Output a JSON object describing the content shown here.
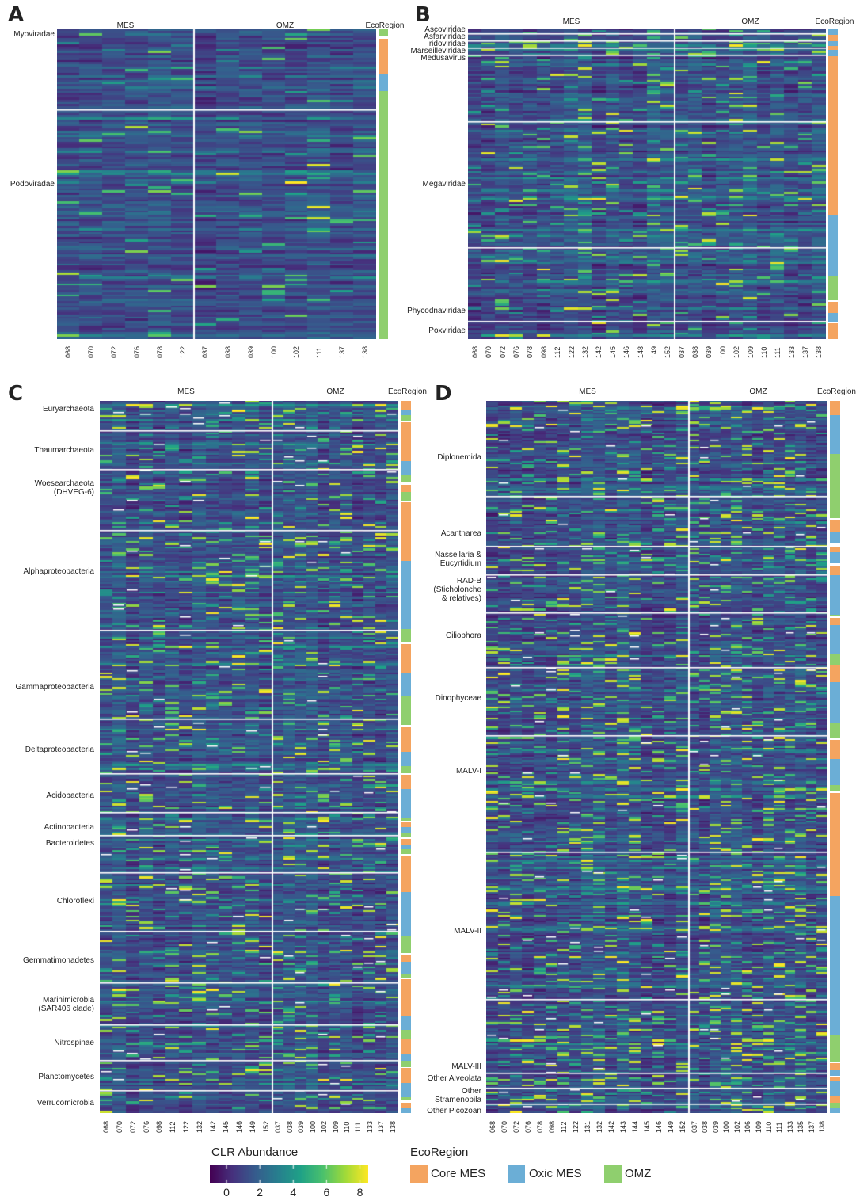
{
  "colors": {
    "core_mes": "#f4a460",
    "oxic_mes": "#6baed6",
    "omz": "#8fcf6e",
    "viridis": [
      "#440154",
      "#46327e",
      "#365c8d",
      "#277f8e",
      "#1fa187",
      "#4ac16d",
      "#a0da39",
      "#fde725"
    ]
  },
  "panels": [
    {
      "letter": "A",
      "mes_label": "MES",
      "omz_label": "OMZ",
      "eco_label": "EcoRegion",
      "samples_mes": [
        "068",
        "070",
        "072",
        "076",
        "078",
        "122"
      ],
      "samples_omz": [
        "037",
        "038",
        "039",
        "100",
        "102",
        "111",
        "137",
        "138"
      ],
      "groups": [
        {
          "name": "Myoviradae",
          "frac": 0.016
        },
        {
          "name": "Podoviradae",
          "frac": 0.5
        }
      ],
      "eco_segments": [
        {
          "region": "omz",
          "from": 0.0,
          "to": 0.02
        },
        {
          "region": "core_mes",
          "from": 0.03,
          "to": 0.145
        },
        {
          "region": "oxic_mes",
          "from": 0.145,
          "to": 0.2
        },
        {
          "region": "omz",
          "from": 0.2,
          "to": 1.0
        }
      ]
    },
    {
      "letter": "B",
      "mes_label": "MES",
      "omz_label": "OMZ",
      "eco_label": "EcoRegion",
      "samples_mes": [
        "068",
        "070",
        "072",
        "076",
        "078",
        "098",
        "112",
        "122",
        "132",
        "142",
        "145",
        "146",
        "148",
        "149",
        "152"
      ],
      "samples_omz": [
        "037",
        "038",
        "039",
        "100",
        "102",
        "109",
        "110",
        "111",
        "133",
        "137",
        "138"
      ],
      "groups": [
        {
          "name": "Ascoviridae",
          "frac": 0.005
        },
        {
          "name": "Asfarviridae",
          "frac": 0.028
        },
        {
          "name": "Iridoviridae",
          "frac": 0.05
        },
        {
          "name": "Marseilleviridae",
          "frac": 0.073
        },
        {
          "name": "Medusavirus",
          "frac": 0.095
        },
        {
          "name": "Megaviridae",
          "frac": 0.5
        },
        {
          "name": "Phycodnaviridae",
          "frac": 0.91
        },
        {
          "name": "Poxviridae",
          "frac": 0.974
        }
      ],
      "eco_segments": [
        {
          "region": "oxic_mes",
          "from": 0.0,
          "to": 0.02
        },
        {
          "region": "core_mes",
          "from": 0.02,
          "to": 0.04
        },
        {
          "region": "oxic_mes",
          "from": 0.04,
          "to": 0.055
        },
        {
          "region": "core_mes",
          "from": 0.055,
          "to": 0.07
        },
        {
          "region": "oxic_mes",
          "from": 0.07,
          "to": 0.09
        },
        {
          "region": "core_mes",
          "from": 0.09,
          "to": 0.6
        },
        {
          "region": "oxic_mes",
          "from": 0.6,
          "to": 0.795
        },
        {
          "region": "omz",
          "from": 0.795,
          "to": 0.875
        },
        {
          "region": "core_mes",
          "from": 0.88,
          "to": 0.915
        },
        {
          "region": "oxic_mes",
          "from": 0.915,
          "to": 0.945
        },
        {
          "region": "core_mes",
          "from": 0.95,
          "to": 1.0
        }
      ]
    },
    {
      "letter": "C",
      "mes_label": "MES",
      "omz_label": "OMZ",
      "eco_label": "EcoRegion",
      "samples_mes": [
        "068",
        "070",
        "072",
        "076",
        "098",
        "112",
        "122",
        "132",
        "142",
        "145",
        "146",
        "149",
        "152"
      ],
      "samples_omz": [
        "037",
        "038",
        "039",
        "100",
        "102",
        "109",
        "110",
        "111",
        "133",
        "137",
        "138"
      ],
      "groups": [
        {
          "name": "Euryarchaeota",
          "frac": 0.012
        },
        {
          "name": "Thaumarchaeota",
          "frac": 0.07
        },
        {
          "name": "Woesearchaeota\n(DHVEG-6)",
          "frac": 0.122
        },
        {
          "name": "Alphaproteobacteria",
          "frac": 0.24
        },
        {
          "name": "Gammaproteobacteria",
          "frac": 0.402
        },
        {
          "name": "Deltaproteobacteria",
          "frac": 0.49
        },
        {
          "name": "Acidobacteria",
          "frac": 0.555
        },
        {
          "name": "Actinobacteria",
          "frac": 0.599
        },
        {
          "name": "Bacteroidetes",
          "frac": 0.621
        },
        {
          "name": "Chloroflexi",
          "frac": 0.703
        },
        {
          "name": "Gemmatimonadetes",
          "frac": 0.786
        },
        {
          "name": "Marinimicrobia\n(SAR406 clade)",
          "frac": 0.848
        },
        {
          "name": "Nitrospinae",
          "frac": 0.902
        },
        {
          "name": "Planctomycetes",
          "frac": 0.949
        },
        {
          "name": "Verrucomicrobia",
          "frac": 0.986
        }
      ],
      "eco_segments": [
        {
          "region": "core_mes",
          "from": 0.0,
          "to": 0.012
        },
        {
          "region": "oxic_mes",
          "from": 0.012,
          "to": 0.02
        },
        {
          "region": "omz",
          "from": 0.02,
          "to": 0.028
        },
        {
          "region": "core_mes",
          "from": 0.03,
          "to": 0.085
        },
        {
          "region": "oxic_mes",
          "from": 0.085,
          "to": 0.105
        },
        {
          "region": "omz",
          "from": 0.105,
          "to": 0.115
        },
        {
          "region": "core_mes",
          "from": 0.118,
          "to": 0.128
        },
        {
          "region": "omz",
          "from": 0.128,
          "to": 0.14
        },
        {
          "region": "core_mes",
          "from": 0.142,
          "to": 0.225
        },
        {
          "region": "oxic_mes",
          "from": 0.225,
          "to": 0.32
        },
        {
          "region": "omz",
          "from": 0.32,
          "to": 0.338
        },
        {
          "region": "core_mes",
          "from": 0.342,
          "to": 0.383
        },
        {
          "region": "oxic_mes",
          "from": 0.383,
          "to": 0.415
        },
        {
          "region": "omz",
          "from": 0.415,
          "to": 0.455
        },
        {
          "region": "core_mes",
          "from": 0.458,
          "to": 0.493
        },
        {
          "region": "oxic_mes",
          "from": 0.493,
          "to": 0.513
        },
        {
          "region": "omz",
          "from": 0.513,
          "to": 0.523
        },
        {
          "region": "core_mes",
          "from": 0.525,
          "to": 0.545
        },
        {
          "region": "oxic_mes",
          "from": 0.545,
          "to": 0.585
        },
        {
          "region": "omz",
          "from": 0.585,
          "to": 0.59
        },
        {
          "region": "core_mes",
          "from": 0.592,
          "to": 0.598
        },
        {
          "region": "oxic_mes",
          "from": 0.598,
          "to": 0.607
        },
        {
          "region": "omz",
          "from": 0.607,
          "to": 0.613
        },
        {
          "region": "core_mes",
          "from": 0.615,
          "to": 0.623
        },
        {
          "region": "oxic_mes",
          "from": 0.623,
          "to": 0.63
        },
        {
          "region": "omz",
          "from": 0.63,
          "to": 0.636
        },
        {
          "region": "core_mes",
          "from": 0.638,
          "to": 0.69
        },
        {
          "region": "oxic_mes",
          "from": 0.69,
          "to": 0.752
        },
        {
          "region": "omz",
          "from": 0.752,
          "to": 0.775
        },
        {
          "region": "core_mes",
          "from": 0.777,
          "to": 0.788
        },
        {
          "region": "oxic_mes",
          "from": 0.788,
          "to": 0.805
        },
        {
          "region": "omz",
          "from": 0.805,
          "to": 0.81
        },
        {
          "region": "core_mes",
          "from": 0.812,
          "to": 0.863
        },
        {
          "region": "oxic_mes",
          "from": 0.863,
          "to": 0.883
        },
        {
          "region": "omz",
          "from": 0.883,
          "to": 0.895
        },
        {
          "region": "core_mes",
          "from": 0.897,
          "to": 0.917
        },
        {
          "region": "oxic_mes",
          "from": 0.917,
          "to": 0.927
        },
        {
          "region": "omz",
          "from": 0.927,
          "to": 0.935
        },
        {
          "region": "core_mes",
          "from": 0.937,
          "to": 0.958
        },
        {
          "region": "oxic_mes",
          "from": 0.958,
          "to": 0.978
        },
        {
          "region": "omz",
          "from": 0.978,
          "to": 0.982
        },
        {
          "region": "core_mes",
          "from": 0.985,
          "to": 0.993
        },
        {
          "region": "oxic_mes",
          "from": 0.993,
          "to": 1.0
        }
      ]
    },
    {
      "letter": "D",
      "mes_label": "MES",
      "omz_label": "OMZ",
      "eco_label": "EcoRegion",
      "samples_mes": [
        "068",
        "070",
        "072",
        "076",
        "078",
        "098",
        "112",
        "122",
        "131",
        "132",
        "142",
        "143",
        "144",
        "145",
        "146",
        "149",
        "152"
      ],
      "samples_omz": [
        "037",
        "038",
        "039",
        "100",
        "102",
        "106",
        "109",
        "110",
        "111",
        "133",
        "135",
        "137",
        "138"
      ],
      "groups": [
        {
          "name": "Diplonemida",
          "frac": 0.08
        },
        {
          "name": "Acantharea",
          "frac": 0.186
        },
        {
          "name": "Nassellaria &\nEucyrtidium",
          "frac": 0.222
        },
        {
          "name": "RAD-B\n(Sticholonche\n& relatives)",
          "frac": 0.265
        },
        {
          "name": "Ciliophora",
          "frac": 0.33
        },
        {
          "name": "Dinophyceae",
          "frac": 0.418
        },
        {
          "name": "MALV-I",
          "frac": 0.52
        },
        {
          "name": "MALV-II",
          "frac": 0.745
        },
        {
          "name": "MALV-III",
          "frac": 0.935
        },
        {
          "name": "Other Alveolata",
          "frac": 0.952
        },
        {
          "name": "Other\nStramenopila",
          "frac": 0.976
        },
        {
          "name": "Other Picozoan",
          "frac": 0.997
        }
      ],
      "eco_segments": [
        {
          "region": "core_mes",
          "from": 0.0,
          "to": 0.02
        },
        {
          "region": "oxic_mes",
          "from": 0.02,
          "to": 0.075
        },
        {
          "region": "omz",
          "from": 0.075,
          "to": 0.165
        },
        {
          "region": "core_mes",
          "from": 0.168,
          "to": 0.184
        },
        {
          "region": "oxic_mes",
          "from": 0.184,
          "to": 0.2
        },
        {
          "region": "core_mes",
          "from": 0.205,
          "to": 0.212
        },
        {
          "region": "oxic_mes",
          "from": 0.212,
          "to": 0.228
        },
        {
          "region": "core_mes",
          "from": 0.232,
          "to": 0.245
        },
        {
          "region": "oxic_mes",
          "from": 0.245,
          "to": 0.3
        },
        {
          "region": "omz",
          "from": 0.3,
          "to": 0.303
        },
        {
          "region": "core_mes",
          "from": 0.305,
          "to": 0.315
        },
        {
          "region": "oxic_mes",
          "from": 0.315,
          "to": 0.355
        },
        {
          "region": "omz",
          "from": 0.355,
          "to": 0.37
        },
        {
          "region": "core_mes",
          "from": 0.372,
          "to": 0.395
        },
        {
          "region": "oxic_mes",
          "from": 0.395,
          "to": 0.452
        },
        {
          "region": "omz",
          "from": 0.452,
          "to": 0.473
        },
        {
          "region": "core_mes",
          "from": 0.476,
          "to": 0.503
        },
        {
          "region": "oxic_mes",
          "from": 0.503,
          "to": 0.54
        },
        {
          "region": "omz",
          "from": 0.54,
          "to": 0.548
        },
        {
          "region": "core_mes",
          "from": 0.551,
          "to": 0.695
        },
        {
          "region": "oxic_mes",
          "from": 0.695,
          "to": 0.89
        },
        {
          "region": "omz",
          "from": 0.89,
          "to": 0.928
        },
        {
          "region": "core_mes",
          "from": 0.93,
          "to": 0.94
        },
        {
          "region": "oxic_mes",
          "from": 0.94,
          "to": 0.948
        },
        {
          "region": "core_mes",
          "from": 0.95,
          "to": 0.955
        },
        {
          "region": "oxic_mes",
          "from": 0.955,
          "to": 0.975
        },
        {
          "region": "core_mes",
          "from": 0.977,
          "to": 0.985
        },
        {
          "region": "omz",
          "from": 0.985,
          "to": 0.992
        },
        {
          "region": "oxic_mes",
          "from": 0.993,
          "to": 1.0
        }
      ]
    }
  ],
  "legend": {
    "colorbar_title": "CLR Abundance",
    "colorbar_ticks": [
      0,
      2,
      4,
      6,
      8
    ],
    "colorbar_range": [
      -1,
      8.5
    ],
    "eco_title": "EcoRegion",
    "eco_items": [
      {
        "label": "Core MES",
        "region": "core_mes"
      },
      {
        "label": "Oxic MES",
        "region": "oxic_mes"
      },
      {
        "label": "OMZ",
        "region": "omz"
      }
    ]
  },
  "chart_data": [
    {
      "type": "heatmap",
      "title": "",
      "x_columns": [
        "068",
        "070",
        "072",
        "076",
        "078",
        "122",
        "037",
        "038",
        "039",
        "100",
        "102",
        "111",
        "137",
        "138"
      ],
      "column_groups": [
        "MES",
        "OMZ"
      ],
      "row_groups": [
        "Myoviradae",
        "Podoviradae"
      ],
      "value_label": "CLR Abundance",
      "value_range": [
        0,
        8
      ]
    },
    {
      "type": "heatmap",
      "title": "",
      "x_columns": [
        "068",
        "070",
        "072",
        "076",
        "078",
        "098",
        "112",
        "122",
        "132",
        "142",
        "145",
        "146",
        "148",
        "149",
        "152",
        "037",
        "038",
        "039",
        "100",
        "102",
        "109",
        "110",
        "111",
        "133",
        "137",
        "138"
      ],
      "column_groups": [
        "MES",
        "OMZ"
      ],
      "row_groups": [
        "Ascoviridae",
        "Asfarviridae",
        "Iridoviridae",
        "Marseilleviridae",
        "Medusavirus",
        "Megaviridae",
        "Phycodnaviridae",
        "Poxviridae"
      ],
      "value_label": "CLR Abundance",
      "value_range": [
        0,
        8
      ]
    },
    {
      "type": "heatmap",
      "title": "",
      "x_columns": [
        "068",
        "070",
        "072",
        "076",
        "098",
        "112",
        "122",
        "132",
        "142",
        "145",
        "146",
        "149",
        "152",
        "037",
        "038",
        "039",
        "100",
        "102",
        "109",
        "110",
        "111",
        "133",
        "137",
        "138"
      ],
      "column_groups": [
        "MES",
        "OMZ"
      ],
      "row_groups": [
        "Euryarchaeota",
        "Thaumarchaeota",
        "Woesearchaeota (DHVEG-6)",
        "Alphaproteobacteria",
        "Gammaproteobacteria",
        "Deltaproteobacteria",
        "Acidobacteria",
        "Actinobacteria",
        "Bacteroidetes",
        "Chloroflexi",
        "Gemmatimonadetes",
        "Marinimicrobia (SAR406 clade)",
        "Nitrospinae",
        "Planctomycetes",
        "Verrucomicrobia"
      ],
      "value_label": "CLR Abundance",
      "value_range": [
        0,
        8
      ]
    },
    {
      "type": "heatmap",
      "title": "",
      "x_columns": [
        "068",
        "070",
        "072",
        "076",
        "078",
        "098",
        "112",
        "122",
        "131",
        "132",
        "142",
        "143",
        "144",
        "145",
        "146",
        "149",
        "152",
        "037",
        "038",
        "039",
        "100",
        "102",
        "106",
        "109",
        "110",
        "111",
        "133",
        "135",
        "137",
        "138"
      ],
      "column_groups": [
        "MES",
        "OMZ"
      ],
      "row_groups": [
        "Diplonemida",
        "Acantharea",
        "Nassellaria & Eucyrtidium",
        "RAD-B (Sticholonche & relatives)",
        "Ciliophora",
        "Dinophyceae",
        "MALV-I",
        "MALV-II",
        "MALV-III",
        "Other Alveolata",
        "Other Stramenopila",
        "Other Picozoan"
      ],
      "value_label": "CLR Abundance",
      "value_range": [
        0,
        8
      ]
    }
  ]
}
